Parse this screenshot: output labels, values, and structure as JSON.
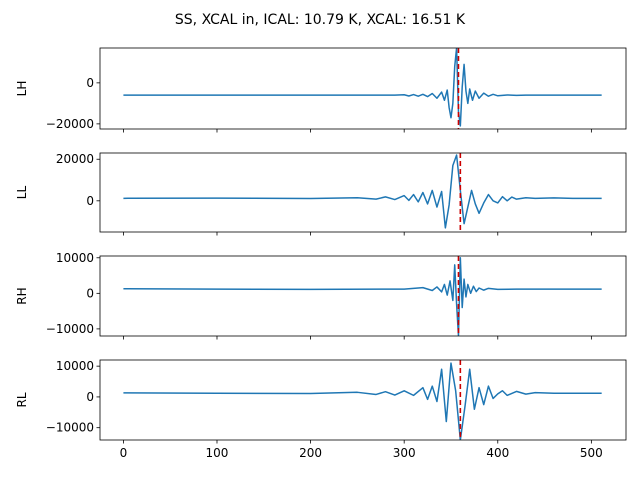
{
  "chart_data": {
    "type": "line",
    "title": "SS, XCAL in, ICAL: 10.79 K, XCAL: 16.51 K",
    "xlim": [
      -25,
      537
    ],
    "xticks": [
      0,
      100,
      200,
      300,
      400,
      500
    ],
    "xtick_labels": [
      "0",
      "100",
      "200",
      "300",
      "400",
      "500"
    ],
    "grid": false,
    "line_color": "#1f77b4",
    "marker_color": "#cc0000",
    "marker_style": "dashed",
    "panels": [
      {
        "ylabel": "LH",
        "ylim": [
          -22500,
          17000
        ],
        "yticks": [
          0,
          -20000
        ],
        "ytick_labels": [
          "0",
          "−20000"
        ],
        "marker_x": 358,
        "series": {
          "baseline": -6000,
          "x": [
            0,
            100,
            200,
            290,
            300,
            305,
            310,
            315,
            320,
            325,
            330,
            335,
            340,
            343,
            346,
            348,
            350,
            352,
            354,
            356,
            358,
            360,
            362,
            364,
            366,
            368,
            370,
            373,
            376,
            380,
            385,
            390,
            395,
            400,
            410,
            420,
            430,
            440,
            460,
            480,
            511
          ],
          "y": [
            -6000,
            -6000,
            -6000,
            -6000,
            -5800,
            -6400,
            -5700,
            -6500,
            -5600,
            -6700,
            -5200,
            -7500,
            -4500,
            -8500,
            -3500,
            -12000,
            -17000,
            -10000,
            8000,
            17000,
            -14000,
            -21000,
            -2000,
            9000,
            -4000,
            -10000,
            -3000,
            -8500,
            -4000,
            -7500,
            -5000,
            -6500,
            -5600,
            -6300,
            -5900,
            -6100,
            -6000,
            -6000,
            -6000,
            -6000,
            -6000
          ]
        }
      },
      {
        "ylabel": "LL",
        "ylim": [
          -15000,
          23000
        ],
        "yticks": [
          0,
          20000
        ],
        "ytick_labels": [
          "0",
          "20000"
        ],
        "marker_x": 360,
        "series": {
          "baseline": 1200,
          "x": [
            0,
            100,
            200,
            250,
            270,
            280,
            290,
            300,
            305,
            310,
            315,
            320,
            325,
            330,
            335,
            340,
            344,
            348,
            352,
            356,
            360,
            364,
            368,
            372,
            376,
            380,
            385,
            390,
            395,
            400,
            405,
            410,
            415,
            420,
            430,
            440,
            460,
            480,
            511
          ],
          "y": [
            1200,
            1300,
            1100,
            1500,
            800,
            1900,
            600,
            2500,
            200,
            3000,
            -500,
            4000,
            -1500,
            5000,
            -3000,
            4500,
            -13000,
            -2000,
            17000,
            22000,
            5000,
            -11000,
            -3000,
            5000,
            -1500,
            -6000,
            -1000,
            3000,
            0,
            -1000,
            2000,
            0,
            1800,
            800,
            1500,
            1200,
            1400,
            1200,
            1200
          ]
        }
      },
      {
        "ylabel": "RH",
        "ylim": [
          -12000,
          10500
        ],
        "yticks": [
          10000,
          0,
          -10000
        ],
        "ytick_labels": [
          "10000",
          "0",
          "−10000"
        ],
        "marker_x": 358,
        "series": {
          "baseline": 1200,
          "x": [
            0,
            100,
            200,
            300,
            320,
            330,
            335,
            340,
            343,
            346,
            349,
            352,
            354,
            356,
            358,
            360,
            362,
            364,
            366,
            368,
            371,
            374,
            377,
            380,
            385,
            390,
            400,
            420,
            511
          ],
          "y": [
            1300,
            1200,
            1100,
            1200,
            1600,
            800,
            1800,
            400,
            2500,
            -500,
            3500,
            -2000,
            8000,
            -3000,
            -12000,
            10000,
            -4000,
            4000,
            -1000,
            2500,
            0,
            2000,
            500,
            1500,
            900,
            1400,
            1100,
            1200,
            1200
          ]
        }
      },
      {
        "ylabel": "RL",
        "ylim": [
          -14000,
          12000
        ],
        "yticks": [
          10000,
          0,
          -10000
        ],
        "ytick_labels": [
          "10000",
          "0",
          "−10000"
        ],
        "marker_x": 360,
        "series": {
          "baseline": 1200,
          "x": [
            0,
            100,
            200,
            250,
            270,
            280,
            290,
            300,
            310,
            320,
            325,
            330,
            335,
            340,
            345,
            350,
            355,
            360,
            365,
            370,
            375,
            380,
            385,
            390,
            395,
            400,
            405,
            410,
            420,
            430,
            440,
            460,
            511
          ],
          "y": [
            1300,
            1200,
            1100,
            1500,
            800,
            1700,
            600,
            2000,
            500,
            3000,
            -800,
            3500,
            -1500,
            9000,
            -8000,
            11000,
            2000,
            -14000,
            -3000,
            9000,
            -4000,
            3000,
            -2500,
            3500,
            -500,
            1000,
            2000,
            500,
            1800,
            900,
            1400,
            1200,
            1200
          ]
        }
      }
    ]
  }
}
